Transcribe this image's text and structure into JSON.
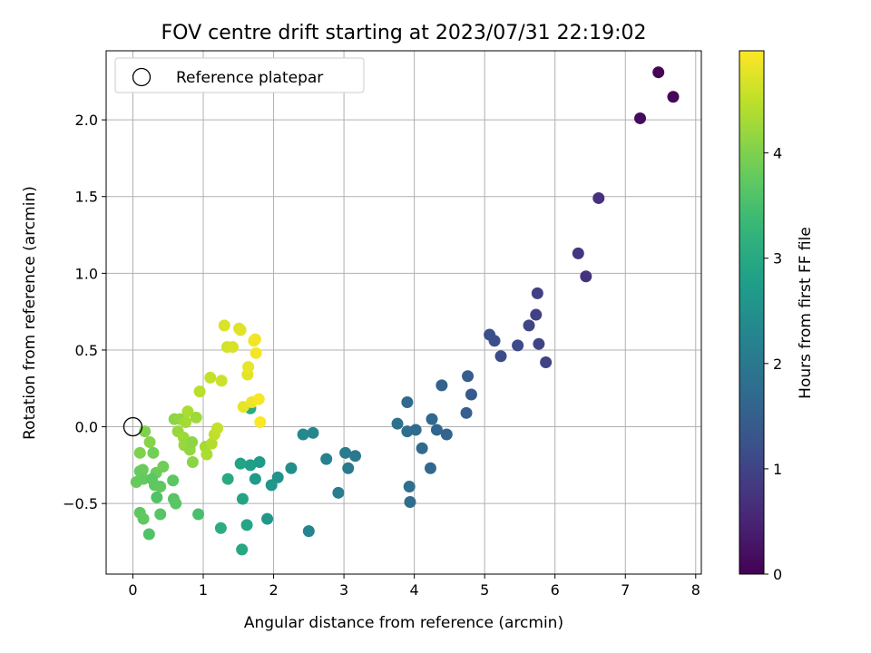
{
  "chart_data": {
    "type": "scatter",
    "title": "FOV centre drift starting at 2023/07/31 22:19:02",
    "xlabel": "Angular distance from reference (arcmin)",
    "ylabel": "Rotation from reference (arcmin)",
    "xlim": [
      -0.38,
      8.08
    ],
    "ylim": [
      -0.96,
      2.45
    ],
    "xticks": [
      0,
      1,
      2,
      3,
      4,
      5,
      6,
      7,
      8
    ],
    "yticks": [
      -0.5,
      0.0,
      0.5,
      1.0,
      1.5,
      2.0
    ],
    "xtick_labels": [
      "0",
      "1",
      "2",
      "3",
      "4",
      "5",
      "6",
      "7",
      "8"
    ],
    "ytick_labels": [
      "−0.5",
      "0.0",
      "0.5",
      "1.0",
      "1.5",
      "2.0"
    ],
    "grid": true,
    "legend": {
      "position": "upper-left",
      "entries": [
        {
          "label": "Reference platepar",
          "marker": "open-circle"
        }
      ]
    },
    "reference_point": {
      "x": 0,
      "y": 0
    },
    "colorbar": {
      "label": "Hours from first FF file",
      "range": [
        0,
        4.97
      ],
      "ticks": [
        0,
        1,
        2,
        3,
        4
      ],
      "tick_labels": [
        "0",
        "1",
        "2",
        "3",
        "4"
      ],
      "colormap": "viridis"
    },
    "points": [
      {
        "x": 7.47,
        "y": 2.31,
        "c": 0.05
      },
      {
        "x": 7.68,
        "y": 2.15,
        "c": 0.08
      },
      {
        "x": 7.21,
        "y": 2.01,
        "c": 0.15
      },
      {
        "x": 6.62,
        "y": 1.49,
        "c": 0.7
      },
      {
        "x": 6.33,
        "y": 1.13,
        "c": 0.78
      },
      {
        "x": 6.44,
        "y": 0.98,
        "c": 0.75
      },
      {
        "x": 5.75,
        "y": 0.87,
        "c": 0.95
      },
      {
        "x": 5.73,
        "y": 0.73,
        "c": 0.98
      },
      {
        "x": 5.63,
        "y": 0.66,
        "c": 1.02
      },
      {
        "x": 5.07,
        "y": 0.6,
        "c": 1.22
      },
      {
        "x": 5.14,
        "y": 0.56,
        "c": 1.2
      },
      {
        "x": 5.47,
        "y": 0.53,
        "c": 1.1
      },
      {
        "x": 5.77,
        "y": 0.54,
        "c": 1.0
      },
      {
        "x": 5.23,
        "y": 0.46,
        "c": 1.15
      },
      {
        "x": 5.87,
        "y": 0.42,
        "c": 0.97
      },
      {
        "x": 4.76,
        "y": 0.33,
        "c": 1.45
      },
      {
        "x": 4.39,
        "y": 0.27,
        "c": 1.55
      },
      {
        "x": 4.81,
        "y": 0.21,
        "c": 1.4
      },
      {
        "x": 3.9,
        "y": 0.16,
        "c": 1.7
      },
      {
        "x": 4.74,
        "y": 0.09,
        "c": 1.5
      },
      {
        "x": 4.25,
        "y": 0.05,
        "c": 1.65
      },
      {
        "x": 3.76,
        "y": 0.02,
        "c": 1.85
      },
      {
        "x": 3.9,
        "y": -0.03,
        "c": 1.8
      },
      {
        "x": 4.02,
        "y": -0.02,
        "c": 1.75
      },
      {
        "x": 4.32,
        "y": -0.02,
        "c": 1.6
      },
      {
        "x": 4.46,
        "y": -0.05,
        "c": 1.58
      },
      {
        "x": 4.11,
        "y": -0.14,
        "c": 1.7
      },
      {
        "x": 4.23,
        "y": -0.27,
        "c": 1.68
      },
      {
        "x": 3.93,
        "y": -0.39,
        "c": 1.78
      },
      {
        "x": 3.94,
        "y": -0.49,
        "c": 1.76
      },
      {
        "x": 3.02,
        "y": -0.17,
        "c": 2.05
      },
      {
        "x": 3.16,
        "y": -0.19,
        "c": 2.0
      },
      {
        "x": 3.06,
        "y": -0.27,
        "c": 2.02
      },
      {
        "x": 2.75,
        "y": -0.21,
        "c": 2.2
      },
      {
        "x": 2.56,
        "y": -0.04,
        "c": 2.3
      },
      {
        "x": 2.42,
        "y": -0.05,
        "c": 2.35
      },
      {
        "x": 2.92,
        "y": -0.43,
        "c": 2.1
      },
      {
        "x": 2.5,
        "y": -0.68,
        "c": 2.25
      },
      {
        "x": 2.25,
        "y": -0.27,
        "c": 2.45
      },
      {
        "x": 2.06,
        "y": -0.33,
        "c": 2.55
      },
      {
        "x": 1.97,
        "y": -0.38,
        "c": 2.6
      },
      {
        "x": 1.91,
        "y": -0.6,
        "c": 2.62
      },
      {
        "x": 1.8,
        "y": -0.23,
        "c": 2.68
      },
      {
        "x": 1.74,
        "y": -0.34,
        "c": 2.7
      },
      {
        "x": 1.67,
        "y": -0.25,
        "c": 2.78
      },
      {
        "x": 1.53,
        "y": -0.24,
        "c": 2.85
      },
      {
        "x": 1.56,
        "y": -0.47,
        "c": 2.9
      },
      {
        "x": 1.62,
        "y": -0.64,
        "c": 2.92
      },
      {
        "x": 1.55,
        "y": -0.8,
        "c": 2.95
      },
      {
        "x": 1.35,
        "y": -0.34,
        "c": 3.0
      },
      {
        "x": 1.25,
        "y": -0.66,
        "c": 3.1
      },
      {
        "x": 1.67,
        "y": 0.12,
        "c": 3.05
      },
      {
        "x": 0.93,
        "y": -0.57,
        "c": 3.5
      },
      {
        "x": 0.17,
        "y": -0.03,
        "c": 4.0
      },
      {
        "x": 0.24,
        "y": -0.1,
        "c": 4.05
      },
      {
        "x": 0.1,
        "y": -0.17,
        "c": 4.0
      },
      {
        "x": 0.29,
        "y": -0.17,
        "c": 3.9
      },
      {
        "x": 0.1,
        "y": -0.29,
        "c": 3.8
      },
      {
        "x": 0.14,
        "y": -0.28,
        "c": 3.82
      },
      {
        "x": 0.33,
        "y": -0.3,
        "c": 3.85
      },
      {
        "x": 0.43,
        "y": -0.26,
        "c": 3.88
      },
      {
        "x": 0.05,
        "y": -0.36,
        "c": 3.8
      },
      {
        "x": 0.15,
        "y": -0.34,
        "c": 3.78
      },
      {
        "x": 0.27,
        "y": -0.34,
        "c": 3.7
      },
      {
        "x": 0.31,
        "y": -0.38,
        "c": 3.72
      },
      {
        "x": 0.39,
        "y": -0.39,
        "c": 3.75
      },
      {
        "x": 0.57,
        "y": -0.35,
        "c": 3.7
      },
      {
        "x": 0.34,
        "y": -0.46,
        "c": 3.6
      },
      {
        "x": 0.58,
        "y": -0.47,
        "c": 3.65
      },
      {
        "x": 0.61,
        "y": -0.5,
        "c": 3.68
      },
      {
        "x": 0.1,
        "y": -0.56,
        "c": 3.72
      },
      {
        "x": 0.15,
        "y": -0.6,
        "c": 3.74
      },
      {
        "x": 0.39,
        "y": -0.57,
        "c": 3.65
      },
      {
        "x": 0.23,
        "y": -0.7,
        "c": 3.6
      },
      {
        "x": 0.59,
        "y": 0.05,
        "c": 4.1
      },
      {
        "x": 0.67,
        "y": 0.05,
        "c": 4.15
      },
      {
        "x": 0.64,
        "y": -0.03,
        "c": 4.2
      },
      {
        "x": 0.72,
        "y": -0.07,
        "c": 4.25
      },
      {
        "x": 0.75,
        "y": 0.03,
        "c": 4.3
      },
      {
        "x": 0.78,
        "y": 0.1,
        "c": 4.35
      },
      {
        "x": 0.73,
        "y": -0.12,
        "c": 4.2
      },
      {
        "x": 0.81,
        "y": -0.15,
        "c": 4.15
      },
      {
        "x": 0.84,
        "y": -0.1,
        "c": 4.12
      },
      {
        "x": 0.9,
        "y": 0.06,
        "c": 4.25
      },
      {
        "x": 0.85,
        "y": -0.23,
        "c": 4.1
      },
      {
        "x": 0.95,
        "y": 0.23,
        "c": 4.45
      },
      {
        "x": 1.03,
        "y": -0.13,
        "c": 4.3
      },
      {
        "x": 1.05,
        "y": -0.18,
        "c": 4.35
      },
      {
        "x": 1.12,
        "y": -0.11,
        "c": 4.4
      },
      {
        "x": 1.16,
        "y": -0.05,
        "c": 4.5
      },
      {
        "x": 1.2,
        "y": -0.01,
        "c": 4.55
      },
      {
        "x": 1.1,
        "y": 0.32,
        "c": 4.55
      },
      {
        "x": 1.26,
        "y": 0.3,
        "c": 4.6
      },
      {
        "x": 1.3,
        "y": 0.66,
        "c": 4.7
      },
      {
        "x": 1.34,
        "y": 0.52,
        "c": 4.65
      },
      {
        "x": 1.42,
        "y": 0.52,
        "c": 4.68
      },
      {
        "x": 1.51,
        "y": 0.64,
        "c": 4.72
      },
      {
        "x": 1.53,
        "y": 0.63,
        "c": 4.75
      },
      {
        "x": 1.57,
        "y": 0.13,
        "c": 4.8
      },
      {
        "x": 1.63,
        "y": 0.34,
        "c": 4.78
      },
      {
        "x": 1.64,
        "y": 0.39,
        "c": 4.82
      },
      {
        "x": 1.69,
        "y": 0.16,
        "c": 4.85
      },
      {
        "x": 1.74,
        "y": 0.57,
        "c": 4.86
      },
      {
        "x": 1.72,
        "y": 0.56,
        "c": 4.88
      },
      {
        "x": 1.75,
        "y": 0.48,
        "c": 4.9
      },
      {
        "x": 1.79,
        "y": 0.18,
        "c": 4.92
      },
      {
        "x": 1.81,
        "y": 0.03,
        "c": 4.95
      }
    ]
  }
}
